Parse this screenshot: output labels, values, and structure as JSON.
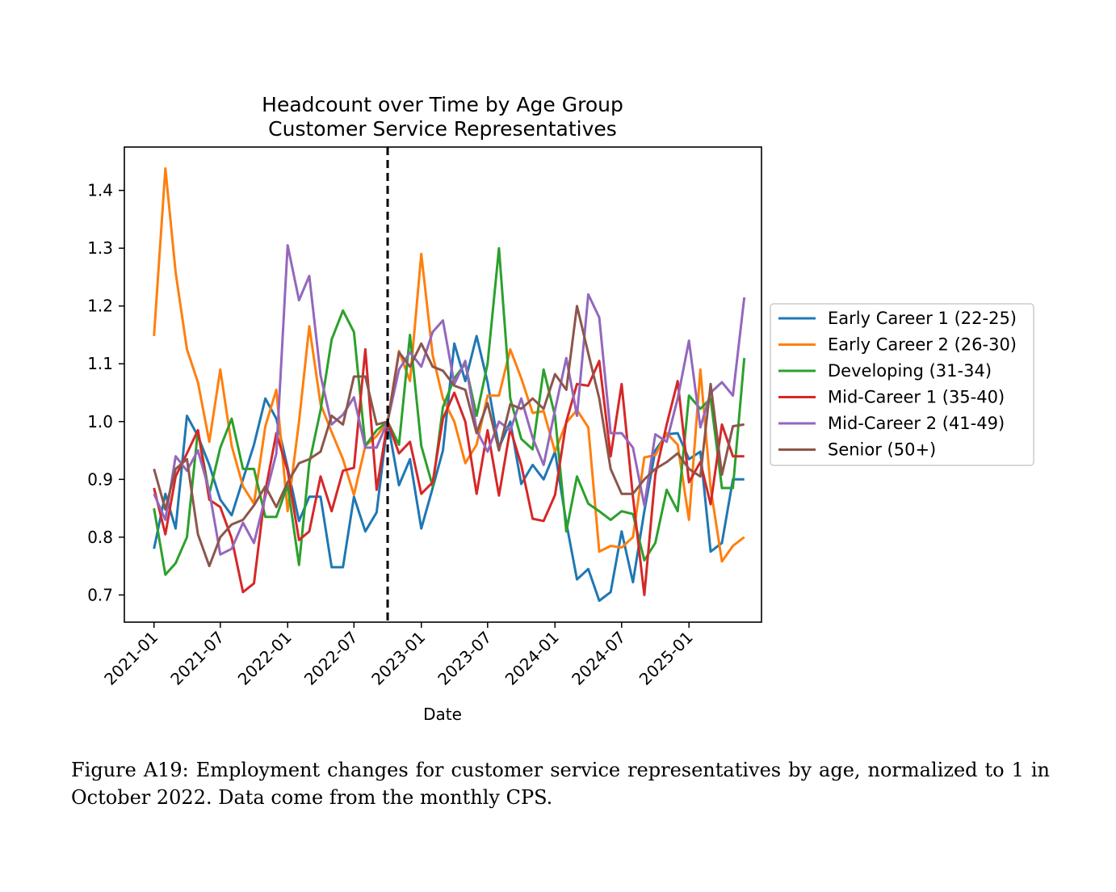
{
  "chart_data": {
    "type": "line",
    "title": "Headcount over Time by Age Group",
    "subtitle": "Customer Service Representatives",
    "xlabel": "Date",
    "ylabel": "",
    "ylim": [
      0.653,
      1.475
    ],
    "xlim": [
      "2020-10-12",
      "2025-07-18"
    ],
    "yticks": [
      0.7,
      0.8,
      0.9,
      1.0,
      1.1,
      1.2,
      1.3,
      1.4
    ],
    "ytick_labels": [
      "0.7",
      "0.8",
      "0.9",
      "1.0",
      "1.1",
      "1.2",
      "1.3",
      "1.4"
    ],
    "xticks": [
      "2021-01",
      "2021-07",
      "2022-01",
      "2022-07",
      "2023-01",
      "2023-07",
      "2024-01",
      "2024-07",
      "2025-01"
    ],
    "reference_line": {
      "x": "2022-10",
      "style": "dashed",
      "color": "#000000"
    },
    "legend_position": "outside-right",
    "grid": false,
    "x": [
      "2021-01",
      "2021-02",
      "2021-03",
      "2021-04",
      "2021-05",
      "2021-06",
      "2021-07",
      "2021-08",
      "2021-09",
      "2021-10",
      "2021-11",
      "2021-12",
      "2022-01",
      "2022-02",
      "2022-03",
      "2022-04",
      "2022-05",
      "2022-06",
      "2022-07",
      "2022-08",
      "2022-09",
      "2022-10",
      "2022-11",
      "2022-12",
      "2023-01",
      "2023-02",
      "2023-03",
      "2023-04",
      "2023-05",
      "2023-06",
      "2023-07",
      "2023-08",
      "2023-09",
      "2023-10",
      "2023-11",
      "2023-12",
      "2024-01",
      "2024-02",
      "2024-03",
      "2024-04",
      "2024-05",
      "2024-06",
      "2024-07",
      "2024-08",
      "2024-09",
      "2024-10",
      "2024-11",
      "2024-12",
      "2025-01",
      "2025-02",
      "2025-03",
      "2025-04",
      "2025-05",
      "2025-06"
    ],
    "series": [
      {
        "name": "Early Career 1 (22-25)",
        "color": "#1f77b4",
        "values": [
          0.78,
          0.875,
          0.815,
          1.01,
          0.975,
          0.925,
          0.865,
          0.838,
          0.9,
          0.96,
          1.04,
          1.005,
          0.92,
          0.828,
          0.87,
          0.87,
          0.748,
          0.748,
          0.87,
          0.81,
          0.843,
          1.0,
          0.89,
          0.935,
          0.815,
          0.885,
          0.95,
          1.135,
          1.07,
          1.148,
          1.068,
          0.955,
          1.0,
          0.892,
          0.925,
          0.9,
          0.948,
          0.825,
          0.727,
          0.745,
          0.69,
          0.705,
          0.81,
          0.722,
          0.845,
          0.95,
          0.978,
          0.98,
          0.935,
          0.948,
          0.775,
          0.79,
          0.9,
          0.9
        ]
      },
      {
        "name": "Early Career 2 (26-30)",
        "color": "#ff7f0e",
        "values": [
          1.148,
          1.438,
          1.258,
          1.125,
          1.068,
          0.965,
          1.09,
          0.958,
          0.888,
          0.858,
          0.992,
          1.055,
          0.845,
          1.0,
          1.165,
          1.03,
          0.982,
          0.935,
          0.873,
          0.958,
          0.975,
          1.0,
          1.122,
          1.07,
          1.29,
          1.115,
          1.04,
          1.0,
          0.928,
          0.96,
          1.045,
          1.045,
          1.125,
          1.075,
          1.015,
          1.018,
          0.948,
          0.998,
          1.02,
          0.99,
          0.775,
          0.785,
          0.782,
          0.8,
          0.938,
          0.942,
          0.98,
          0.96,
          0.83,
          1.09,
          0.885,
          0.758,
          0.785,
          0.8
        ]
      },
      {
        "name": "Developing (31-34)",
        "color": "#2ca02c",
        "values": [
          0.85,
          0.735,
          0.755,
          0.8,
          0.985,
          0.875,
          0.955,
          1.005,
          0.918,
          0.918,
          0.835,
          0.835,
          0.89,
          0.752,
          0.928,
          1.02,
          1.142,
          1.192,
          1.155,
          0.958,
          0.985,
          1.0,
          0.96,
          1.15,
          0.958,
          0.888,
          1.025,
          1.075,
          1.1,
          1.01,
          1.1,
          1.3,
          1.04,
          0.97,
          0.952,
          1.09,
          1.01,
          0.81,
          0.905,
          0.858,
          0.845,
          0.83,
          0.845,
          0.84,
          0.76,
          0.79,
          0.882,
          0.845,
          1.045,
          1.022,
          1.04,
          0.885,
          0.885,
          1.11
        ]
      },
      {
        "name": "Mid-Career 1 (35-40)",
        "color": "#d62728",
        "values": [
          0.885,
          0.805,
          0.905,
          0.945,
          0.985,
          0.865,
          0.852,
          0.798,
          0.705,
          0.72,
          0.88,
          0.98,
          0.915,
          0.795,
          0.81,
          0.905,
          0.845,
          0.915,
          0.92,
          1.125,
          0.882,
          1.0,
          0.945,
          0.965,
          0.875,
          0.895,
          1.005,
          1.05,
          1.0,
          0.875,
          0.985,
          0.872,
          0.988,
          0.925,
          0.832,
          0.828,
          0.873,
          1.0,
          1.065,
          1.062,
          1.105,
          0.94,
          1.065,
          0.87,
          0.7,
          0.908,
          0.995,
          1.07,
          0.895,
          0.93,
          0.857,
          0.995,
          0.94,
          0.94
        ]
      },
      {
        "name": "Mid-Career 2 (41-49)",
        "color": "#9467bd",
        "values": [
          0.875,
          0.83,
          0.94,
          0.915,
          0.95,
          0.88,
          0.77,
          0.78,
          0.825,
          0.79,
          0.87,
          0.945,
          1.305,
          1.21,
          1.252,
          1.08,
          0.995,
          1.012,
          1.042,
          0.955,
          0.955,
          1.0,
          1.09,
          1.12,
          1.095,
          1.155,
          1.175,
          1.065,
          1.105,
          0.985,
          0.948,
          1.0,
          0.985,
          1.04,
          0.972,
          0.925,
          1.02,
          1.11,
          1.01,
          1.22,
          1.18,
          0.98,
          0.98,
          0.955,
          0.855,
          0.978,
          0.965,
          1.04,
          1.14,
          0.99,
          1.05,
          1.068,
          1.045,
          1.215
        ]
      },
      {
        "name": "Senior (50+)",
        "color": "#8c564b",
        "values": [
          0.918,
          0.848,
          0.918,
          0.935,
          0.805,
          0.75,
          0.8,
          0.822,
          0.83,
          0.855,
          0.888,
          0.852,
          0.895,
          0.928,
          0.935,
          0.948,
          1.01,
          0.995,
          1.078,
          1.078,
          0.995,
          1.0,
          1.12,
          1.095,
          1.135,
          1.095,
          1.088,
          1.062,
          1.055,
          0.98,
          1.032,
          0.95,
          1.03,
          1.022,
          1.04,
          1.022,
          1.082,
          1.055,
          1.2,
          1.118,
          1.04,
          0.918,
          0.875,
          0.875,
          0.9,
          0.918,
          0.93,
          0.945,
          0.918,
          0.905,
          1.065,
          0.908,
          0.992,
          0.995
        ]
      }
    ]
  },
  "caption": "Figure A19: Employment changes for customer service representatives by age, normalized to 1 in October 2022. Data come from the monthly CPS."
}
